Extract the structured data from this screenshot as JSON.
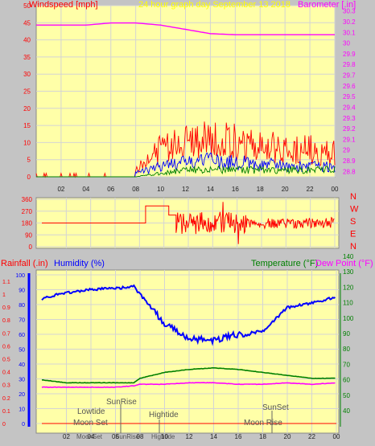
{
  "header": {
    "left_title": "Windspeed [mph]",
    "center_title": "24 hour graph day   September 13 2018",
    "right_title": "Barometer [.in]"
  },
  "colors": {
    "background": "#c4c4c4",
    "plot_bg": "#ffffa8",
    "grid": "#d4d4d4",
    "wind": "#ff0000",
    "gust": "#0000ff",
    "avg": "#008000",
    "baro": "#ff00ff",
    "humidity": "#0000ff",
    "temperature": "#008000",
    "dewpoint": "#ff00ff",
    "rain": "#ff0000",
    "title_center": "#ffff00"
  },
  "chart_data": [
    {
      "type": "line",
      "name": "wind-baro",
      "x_ticks": [
        "02",
        "04",
        "06",
        "08",
        "10",
        "12",
        "14",
        "16",
        "18",
        "20",
        "22",
        "00"
      ],
      "left_axis": {
        "label": "Windspeed [mph]",
        "ylim": [
          0,
          50
        ],
        "ticks": [
          0,
          5,
          10,
          15,
          20,
          25,
          30,
          35,
          40,
          45,
          50
        ]
      },
      "right_axis": {
        "label": "Barometer [.in]",
        "ylim": [
          28.75,
          30.35
        ],
        "ticks": [
          28.8,
          28.9,
          29,
          29.1,
          29.2,
          29.3,
          29.4,
          29.5,
          29.6,
          29.7,
          29.8,
          29.9,
          30,
          30.1,
          30.2,
          30.3
        ]
      },
      "x": [
        0,
        2,
        4,
        6,
        8,
        10,
        12,
        14,
        16,
        18,
        20,
        22,
        24
      ],
      "series": [
        {
          "name": "Barometer",
          "axis": "right",
          "values": [
            30.17,
            30.17,
            30.17,
            30.19,
            30.19,
            30.17,
            30.13,
            30.09,
            30.08,
            30.08,
            30.08,
            30.08,
            30.08
          ]
        },
        {
          "name": "Windspeed",
          "axis": "left",
          "values": [
            1,
            1,
            1,
            1,
            2,
            8,
            10,
            11,
            10,
            9,
            8,
            8,
            7
          ]
        },
        {
          "name": "Gust",
          "axis": "left",
          "values": [
            0,
            0,
            0,
            0,
            1,
            3,
            4,
            5,
            4,
            4,
            3,
            3,
            3
          ]
        },
        {
          "name": "Average",
          "axis": "left",
          "values": [
            0,
            0,
            0,
            0,
            0,
            1,
            2,
            2,
            2,
            2,
            2,
            2,
            2
          ]
        }
      ]
    },
    {
      "type": "scatter",
      "name": "wind-direction",
      "x_ticks": [
        "02",
        "04",
        "06",
        "08",
        "10",
        "12",
        "14",
        "16",
        "18",
        "20",
        "22",
        "00"
      ],
      "left_ticks": [
        "360",
        "270",
        "180",
        "90",
        "0"
      ],
      "right_ticks": [
        "N",
        "W",
        "S",
        "E",
        "N"
      ],
      "ylim": [
        0,
        360
      ],
      "x": [
        0,
        6,
        7.5,
        8,
        9.5,
        10,
        12,
        14,
        16,
        18,
        20,
        22,
        24
      ],
      "values": [
        180,
        180,
        310,
        310,
        240,
        190,
        170,
        190,
        180,
        180,
        175,
        180,
        185
      ]
    },
    {
      "type": "line",
      "name": "humidity-temp-rain",
      "x_ticks": [
        "02",
        "04",
        "06",
        "08",
        "10",
        "12",
        "14",
        "16",
        "18",
        "20",
        "22",
        "00"
      ],
      "rain_axis": {
        "label": "Rainfall (.in)",
        "ylim": [
          0,
          1.15
        ],
        "ticks": [
          "0",
          "0.1",
          "0.2",
          "0.3",
          "0.4",
          "0.5",
          "0.6",
          "0.7",
          "0.8",
          "0.9",
          "1",
          "1.1"
        ]
      },
      "humidity_axis": {
        "label": "Humidity (%)",
        "ylim": [
          0,
          100
        ],
        "ticks": [
          "0",
          "10",
          "20",
          "30",
          "40",
          "50",
          "60",
          "70",
          "80",
          "90",
          "100"
        ]
      },
      "temp_axis": {
        "label": "Temperature (°F)",
        "label2": "Dew Point (°F)",
        "ylim": [
          35,
          145
        ],
        "ticks": [
          "40",
          "50",
          "60",
          "70",
          "80",
          "90",
          "100",
          "110",
          "120",
          "130",
          "140"
        ]
      },
      "x": [
        0,
        2,
        4,
        6,
        7.5,
        8,
        10,
        12,
        14,
        16,
        18,
        20,
        22,
        24
      ],
      "series": [
        {
          "name": "Humidity",
          "axis": "humidity",
          "values": [
            84,
            88,
            90,
            91,
            92,
            87,
            67,
            57,
            56,
            60,
            62,
            78,
            81,
            85
          ]
        },
        {
          "name": "Temperature",
          "axis": "temp",
          "values": [
            65,
            63,
            63,
            63,
            63,
            66,
            70,
            72,
            73,
            72,
            70,
            68,
            66,
            66
          ]
        },
        {
          "name": "Dew Point",
          "axis": "temp",
          "values": [
            60,
            60,
            60,
            60,
            61,
            62,
            62,
            63,
            63,
            62,
            62,
            63,
            62,
            63
          ]
        },
        {
          "name": "Rainfall",
          "axis": "rain",
          "values": [
            0,
            0,
            0,
            0,
            0,
            0,
            0,
            0,
            0,
            0,
            0,
            0,
            0,
            0
          ]
        }
      ],
      "annotations": {
        "lowtide": "Lowtide",
        "moonset": "Moon Set",
        "sunrise": "SunRise",
        "hightide": "Hightide",
        "sunset": "SunSet",
        "moonrise": "Moon Rise",
        "x_under": [
          "MoonSet",
          "SunRise",
          "Hightide"
        ]
      }
    }
  ]
}
